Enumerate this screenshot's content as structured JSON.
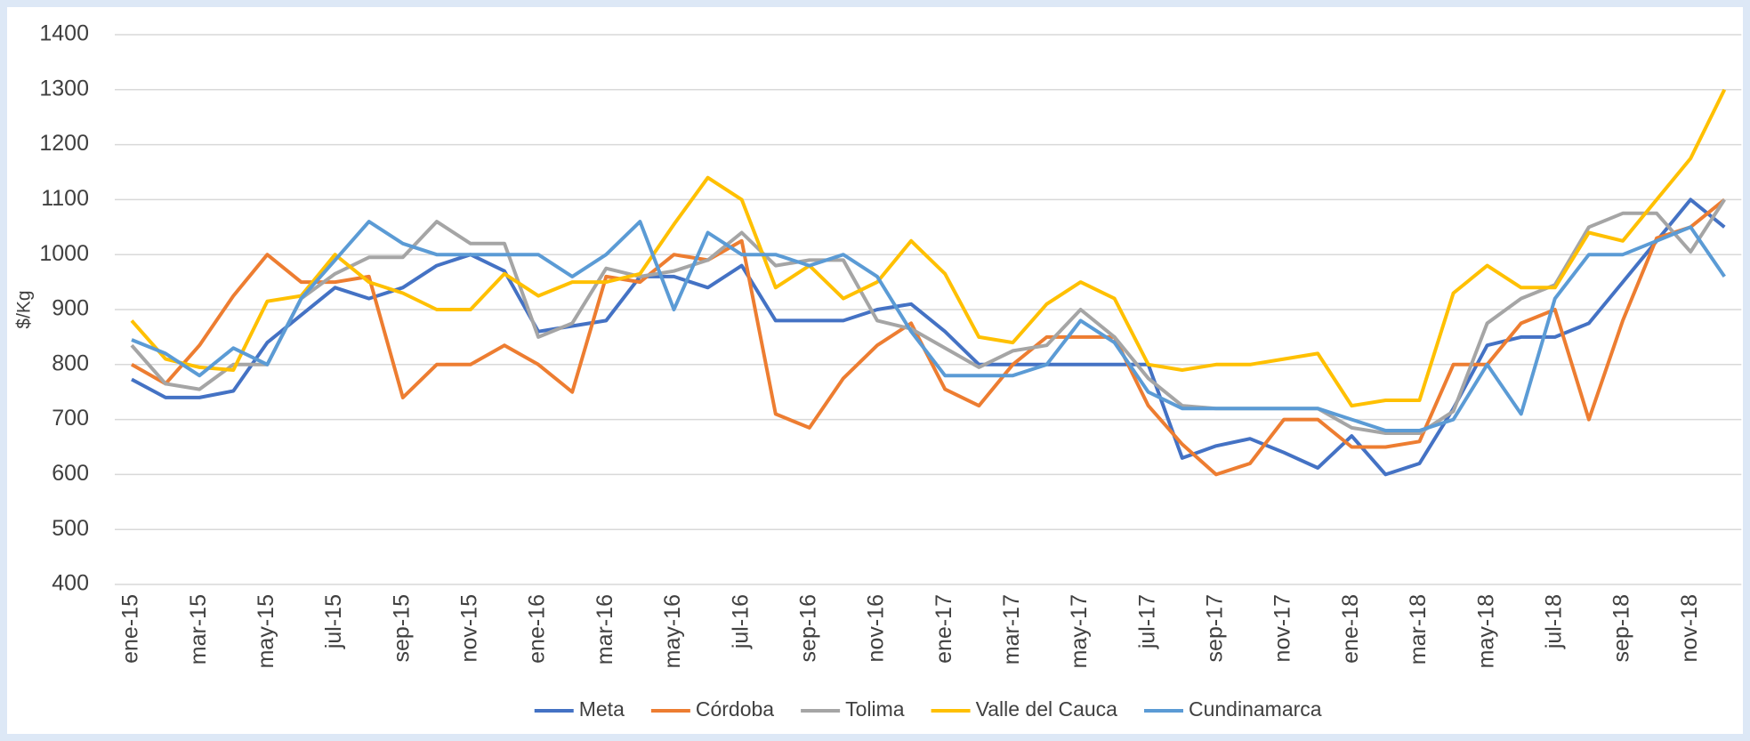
{
  "chart_data": {
    "type": "line",
    "y_label": "$/Kg",
    "categories": [
      "ene-15",
      null,
      "mar-15",
      null,
      "may-15",
      null,
      "jul-15",
      null,
      "sep-15",
      null,
      "nov-15",
      null,
      "ene-16",
      null,
      "mar-16",
      null,
      "may-16",
      null,
      "jul-16",
      null,
      "sep-16",
      null,
      "nov-16",
      null,
      "ene-17",
      null,
      "mar-17",
      null,
      "may-17",
      null,
      "jul-17",
      null,
      "sep-17",
      null,
      "nov-17",
      null,
      "ene-18",
      null,
      "mar-18",
      null,
      "may-18",
      null,
      "jul-18",
      null,
      "sep-18",
      null,
      "nov-18",
      null
    ],
    "ylim": [
      400,
      1400
    ],
    "yticks": [
      400,
      500,
      600,
      700,
      800,
      900,
      1000,
      1100,
      1200,
      1300,
      1400
    ],
    "grid": true,
    "legend": "bottom",
    "series": [
      {
        "name": "Meta",
        "color": "#4472c4",
        "values": [
          773,
          740,
          740,
          752,
          840,
          890,
          940,
          920,
          940,
          980,
          1000,
          970,
          860,
          870,
          880,
          960,
          960,
          940,
          980,
          880,
          880,
          880,
          900,
          910,
          860,
          800,
          800,
          800,
          800,
          800,
          800,
          630,
          652,
          665,
          640,
          612,
          670,
          600,
          620,
          720,
          835,
          850,
          850,
          875,
          950,
          1025,
          1100,
          1050
        ]
      },
      {
        "name": "Córdoba",
        "color": "#ed7d31",
        "values": [
          800,
          765,
          835,
          925,
          1000,
          950,
          950,
          960,
          740,
          800,
          800,
          835,
          800,
          750,
          960,
          950,
          1000,
          990,
          1025,
          710,
          685,
          775,
          835,
          875,
          755,
          725,
          800,
          850,
          850,
          850,
          725,
          655,
          600,
          620,
          700,
          700,
          650,
          650,
          660,
          800,
          800,
          875,
          900,
          700,
          880,
          1030,
          1050,
          1100
        ]
      },
      {
        "name": "Tolima",
        "color": "#a5a5a5",
        "values": [
          835,
          765,
          755,
          800,
          800,
          920,
          965,
          995,
          995,
          1060,
          1020,
          1020,
          850,
          875,
          975,
          960,
          970,
          990,
          1040,
          980,
          990,
          990,
          880,
          865,
          830,
          795,
          825,
          835,
          900,
          850,
          775,
          725,
          720,
          720,
          720,
          720,
          685,
          675,
          675,
          715,
          875,
          920,
          945,
          1050,
          1075,
          1075,
          1005,
          1100
        ]
      },
      {
        "name": "Valle del Cauca",
        "color": "#ffc000",
        "values": [
          880,
          810,
          795,
          790,
          915,
          925,
          1000,
          950,
          930,
          900,
          900,
          965,
          925,
          950,
          950,
          965,
          1055,
          1140,
          1100,
          940,
          980,
          920,
          950,
          1025,
          965,
          850,
          840,
          910,
          950,
          920,
          800,
          790,
          800,
          800,
          810,
          820,
          725,
          735,
          735,
          930,
          980,
          940,
          940,
          1040,
          1025,
          1100,
          1175,
          1300
        ]
      },
      {
        "name": "Cundinamarca",
        "color": "#5b9bd5",
        "values": [
          845,
          820,
          780,
          830,
          800,
          920,
          990,
          1060,
          1020,
          1000,
          1000,
          1000,
          1000,
          960,
          1000,
          1060,
          900,
          1040,
          1000,
          1000,
          980,
          1000,
          960,
          860,
          780,
          780,
          780,
          800,
          880,
          840,
          750,
          720,
          720,
          720,
          720,
          720,
          700,
          680,
          680,
          700,
          800,
          710,
          920,
          1000,
          1000,
          1025,
          1050,
          960
        ]
      }
    ]
  }
}
